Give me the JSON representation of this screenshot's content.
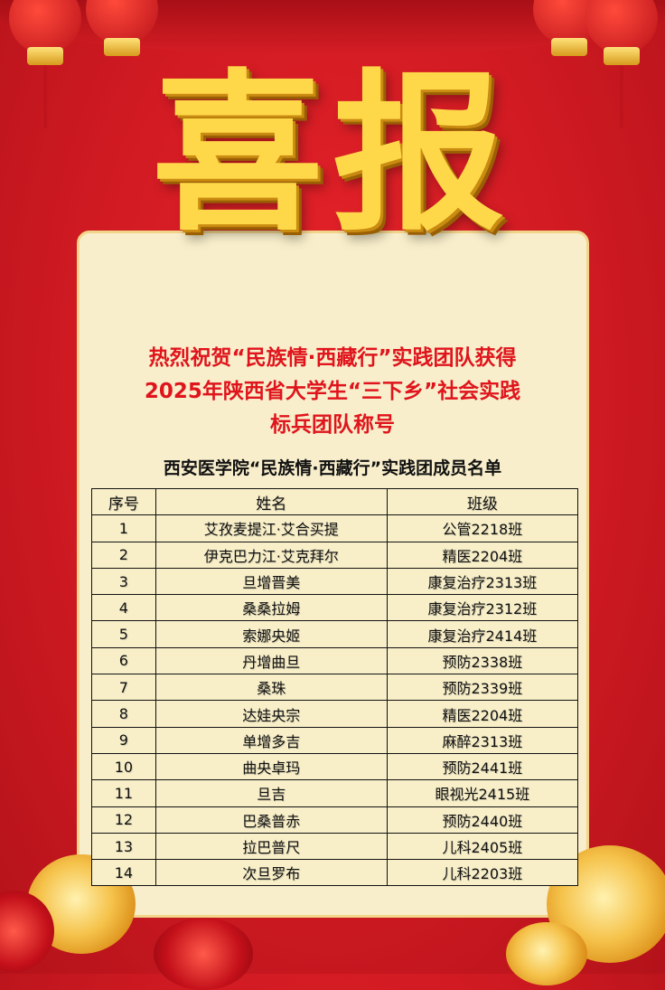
{
  "poster": {
    "big_title": "喜报",
    "headline_lines": [
      "热烈祝贺“民族情·西藏行”实践团队获得",
      "2025年陕西省大学生“三下乡”社会实践",
      "标兵团队称号"
    ],
    "subtitle": "西安医学院“民族情·西藏行”实践团成员名单",
    "colors": {
      "background": "#d01a22",
      "headline": "#e0141c",
      "card": "#f8eecb",
      "gold": "#ffd84a"
    }
  },
  "table": {
    "headers": [
      "序号",
      "姓名",
      "班级"
    ],
    "rows": [
      [
        "1",
        "艾孜麦提江·艾合买提",
        "公管2218班"
      ],
      [
        "2",
        "伊克巴力江·艾克拜尔",
        "精医2204班"
      ],
      [
        "3",
        "旦增晋美",
        "康复治疗2313班"
      ],
      [
        "4",
        "桑桑拉姆",
        "康复治疗2312班"
      ],
      [
        "5",
        "索娜央姬",
        "康复治疗2414班"
      ],
      [
        "6",
        "丹增曲旦",
        "预防2338班"
      ],
      [
        "7",
        "桑珠",
        "预防2339班"
      ],
      [
        "8",
        "达娃央宗",
        "精医2204班"
      ],
      [
        "9",
        "单增多吉",
        "麻醉2313班"
      ],
      [
        "10",
        "曲央卓玛",
        "预防2441班"
      ],
      [
        "11",
        "旦吉",
        "眼视光2415班"
      ],
      [
        "12",
        "巴桑普赤",
        "预防2440班"
      ],
      [
        "13",
        "拉巴普尺",
        "儿科2405班"
      ],
      [
        "14",
        "次旦罗布",
        "儿科2203班"
      ]
    ]
  }
}
